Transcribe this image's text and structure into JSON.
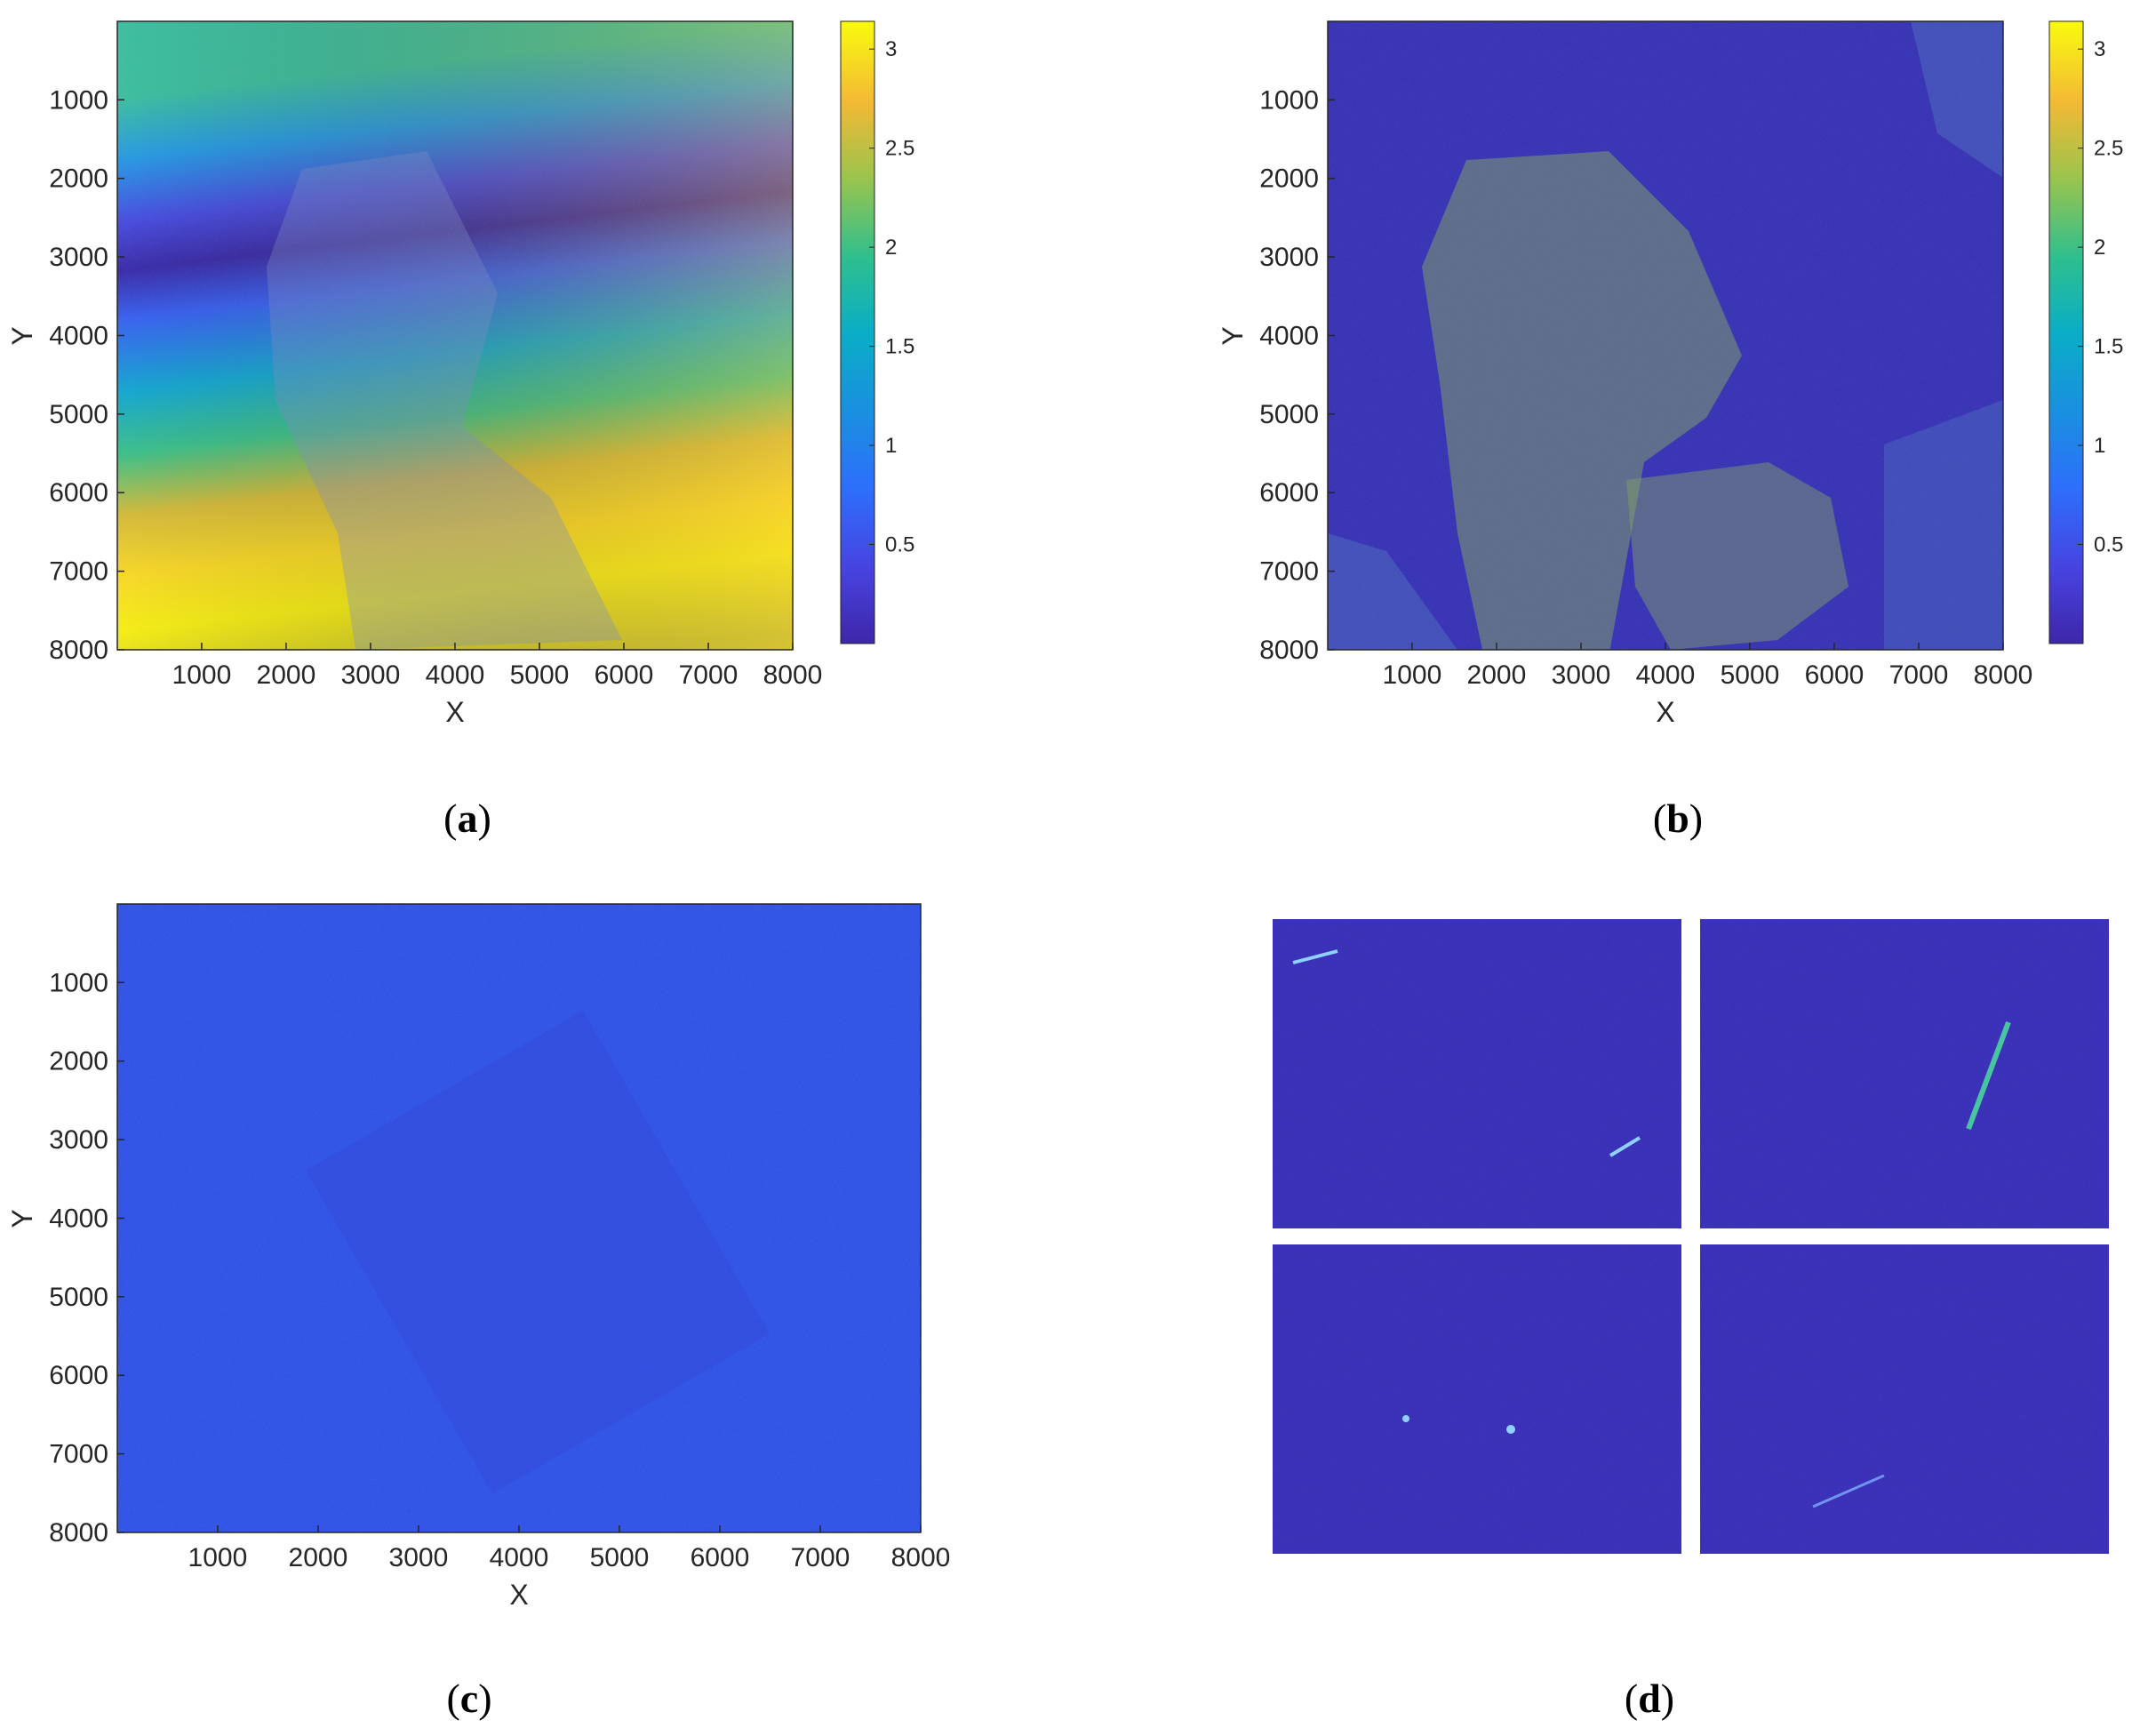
{
  "figure": {
    "panels": [
      {
        "id": "a",
        "caption_label": "a"
      },
      {
        "id": "b",
        "caption_label": "b"
      },
      {
        "id": "c",
        "caption_label": "c"
      },
      {
        "id": "d",
        "caption_label": "d"
      }
    ]
  },
  "chart_data": [
    {
      "panel": "a",
      "type": "heatmap",
      "title": "",
      "xlabel": "X",
      "ylabel": "Y",
      "xlim": [
        1,
        8000
      ],
      "ylim": [
        1,
        8000
      ],
      "y_axis_direction": "reversed",
      "xticks": [
        1000,
        2000,
        3000,
        4000,
        5000,
        6000,
        7000,
        8000
      ],
      "yticks": [
        1000,
        2000,
        3000,
        4000,
        5000,
        6000,
        7000,
        8000
      ],
      "colormap": "parula",
      "colorbar": {
        "range": [
          0,
          3.14
        ],
        "ticks": [
          0.5,
          1,
          1.5,
          2,
          2.5,
          3
        ],
        "tick_labels": [
          "0.5",
          "1",
          "1.5",
          "2",
          "2.5",
          "3"
        ]
      },
      "grid": false
    },
    {
      "panel": "b",
      "type": "heatmap",
      "title": "",
      "xlabel": "X",
      "ylabel": "Y",
      "xlim": [
        1,
        8000
      ],
      "ylim": [
        1,
        8000
      ],
      "y_axis_direction": "reversed",
      "xticks": [
        1000,
        2000,
        3000,
        4000,
        5000,
        6000,
        7000,
        8000
      ],
      "yticks": [
        1000,
        2000,
        3000,
        4000,
        5000,
        6000,
        7000,
        8000
      ],
      "colormap": "parula",
      "colorbar": {
        "range": [
          0,
          3.14
        ],
        "ticks": [
          0.5,
          1,
          1.5,
          2,
          2.5,
          3
        ],
        "tick_labels": [
          "0.5",
          "1",
          "1.5",
          "2",
          "2.5",
          "3"
        ]
      },
      "grid": false
    },
    {
      "panel": "c",
      "type": "heatmap",
      "title": "",
      "xlabel": "X",
      "ylabel": "Y",
      "xlim": [
        1,
        8000
      ],
      "ylim": [
        1,
        8000
      ],
      "y_axis_direction": "reversed",
      "xticks": [
        1000,
        2000,
        3000,
        4000,
        5000,
        6000,
        7000,
        8000
      ],
      "yticks": [
        1000,
        2000,
        3000,
        4000,
        5000,
        6000,
        7000,
        8000
      ],
      "colormap": "parula",
      "grid": false
    },
    {
      "panel": "d",
      "type": "heatmap",
      "title": "",
      "subimages": 4,
      "layout": "2x2",
      "colormap": "parula",
      "axes": "none"
    }
  ]
}
